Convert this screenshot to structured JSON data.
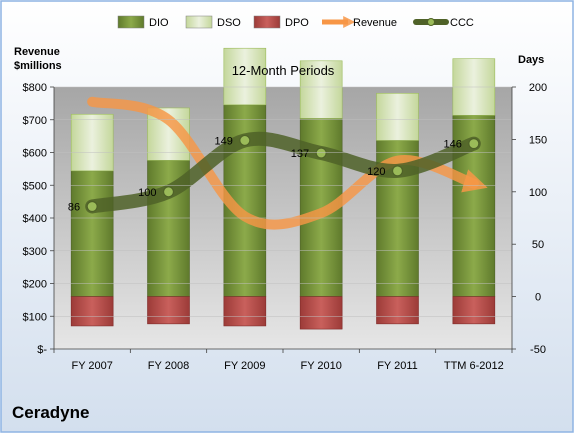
{
  "chart_data": {
    "type": "bar",
    "title": "12-Month Periods",
    "company": "Ceradyne",
    "left_axis_label": [
      "Revenue",
      "$millions"
    ],
    "right_axis_label": "Days",
    "categories": [
      "FY 2007",
      "FY 2008",
      "FY 2009",
      "FY 2010",
      "FY 2011",
      "TTM 6-2012"
    ],
    "left_ylim": [
      0,
      800
    ],
    "left_ticks": [
      "$-",
      "$100",
      "$200",
      "$300",
      "$400",
      "$500",
      "$600",
      "$700",
      "$800"
    ],
    "right_ylim": [
      -50,
      200
    ],
    "right_ticks": [
      "-50",
      "0",
      "50",
      "100",
      "150",
      "200"
    ],
    "legend_position": "top",
    "series": [
      {
        "name": "DIO",
        "axis": "days",
        "values": [
          120,
          130,
          183,
          170,
          149,
          173
        ],
        "color": "#77933c"
      },
      {
        "name": "DSO",
        "axis": "days",
        "values": [
          54,
          50,
          54,
          55,
          45,
          54
        ],
        "color": "#d7e4bd"
      },
      {
        "name": "DPO",
        "axis": "days",
        "values": [
          -28,
          -26,
          -28,
          -31,
          -26,
          -26
        ],
        "color": "#c0504d"
      },
      {
        "name": "Revenue",
        "axis": "revenue",
        "values": [
          755,
          700,
          405,
          415,
          575,
          505
        ],
        "color": "#f79646"
      },
      {
        "name": "CCC",
        "axis": "days",
        "values": [
          86,
          100,
          149,
          137,
          120,
          146
        ],
        "color": "#4f6228"
      }
    ],
    "ccc_labels": [
      "86",
      "100",
      "149",
      "137",
      "120",
      "146"
    ]
  }
}
